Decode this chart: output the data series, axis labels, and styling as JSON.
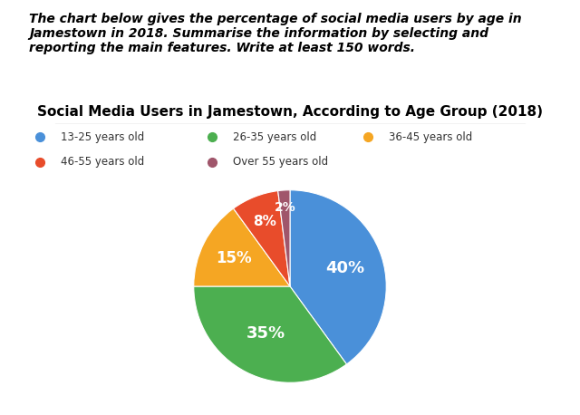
{
  "title": "Social Media Users in Jamestown, According to Age Group (2018)",
  "header_text": "The chart below gives the percentage of social media users by age in\nJamestown in 2018. Summarise the information by selecting and\nreporting the main features. Write at least 150 words.",
  "labels": [
    "13-25 years old",
    "26-35 years old",
    "36-45 years old",
    "46-55 years old",
    "Over 55 years old"
  ],
  "values": [
    40,
    35,
    15,
    8,
    2
  ],
  "colors": [
    "#4A90D9",
    "#4CAF50",
    "#F5A623",
    "#E84C2B",
    "#A0566B"
  ],
  "pct_labels": [
    "40%",
    "35%",
    "15%",
    "8%",
    "2%"
  ],
  "background_color": "#FFFFFF",
  "title_fontsize": 11,
  "header_fontsize": 10
}
